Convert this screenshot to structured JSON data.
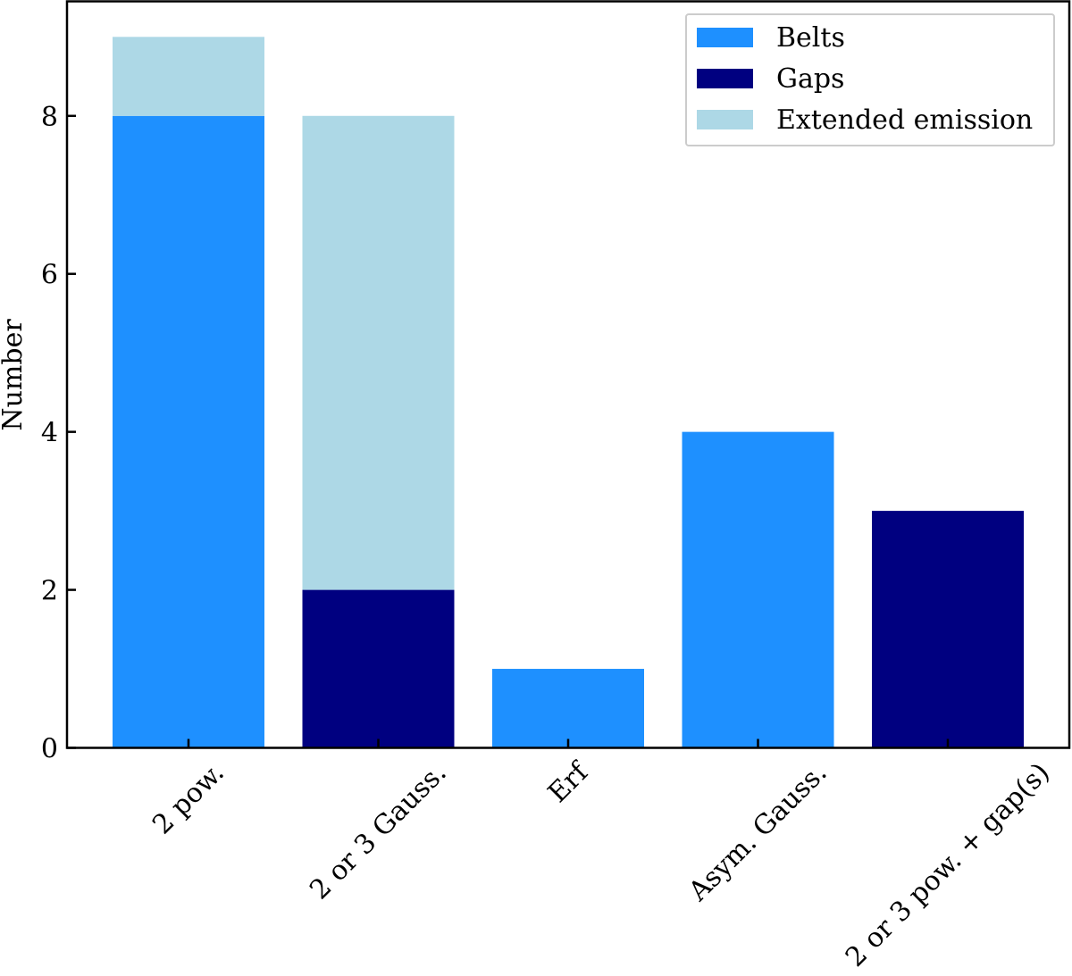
{
  "chart_data": {
    "type": "bar",
    "stacked": true,
    "categories": [
      "2 pow.",
      "2 or 3 Gauss.",
      "Erf",
      "Asym. Gauss.",
      "2 or 3 pow. + gap(s)"
    ],
    "series": [
      {
        "name": "Belts",
        "color": "#1E90FF",
        "values": [
          8,
          0,
          1,
          4,
          0
        ]
      },
      {
        "name": "Gaps",
        "color": "#000080",
        "values": [
          0,
          2,
          0,
          0,
          3
        ]
      },
      {
        "name": "Extended emission",
        "color": "#ADD8E6",
        "values": [
          1,
          6,
          0,
          0,
          0
        ]
      }
    ],
    "title": "",
    "xlabel": "",
    "ylabel": "Number",
    "ylim": [
      0,
      9.45
    ],
    "yticks": [
      0,
      2,
      4,
      6,
      8
    ],
    "grid": false,
    "legend": "top-right",
    "tick_direction": "in",
    "xtick_rotation": 45
  }
}
